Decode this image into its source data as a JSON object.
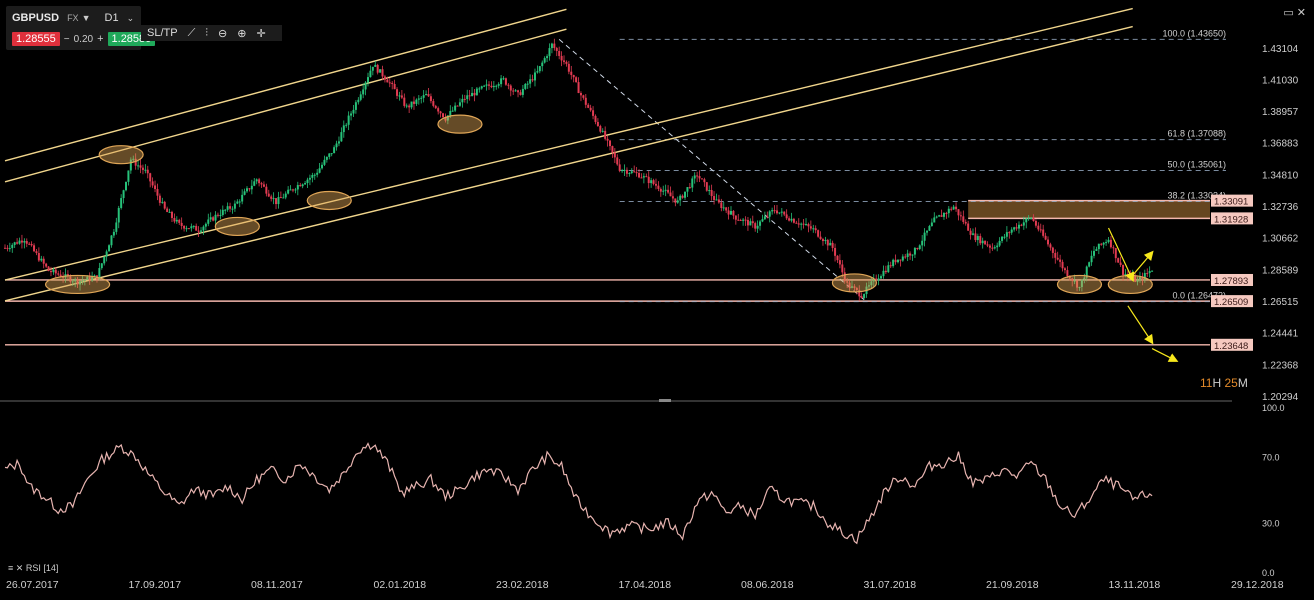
{
  "toolbar": {
    "symbol": "GBPUSD",
    "market": "FX",
    "timeframe": "D1",
    "bid": "1.28555",
    "change": "0.20",
    "ask": "1.28580",
    "sltp": "SL/TP"
  },
  "countdown": {
    "hours": "11",
    "h_unit": "H",
    "minutes": "25",
    "m_unit": "M"
  },
  "rsi_label": "RSI [14]",
  "colors": {
    "up": "#27c27a",
    "down": "#e23b52",
    "channel": "#f0d58c",
    "level": "#f4b7ad",
    "ellipse": "#e0a657",
    "zone": "#6b4a22",
    "arrow": "#f7e81c",
    "rsi": "#e7b4b0",
    "fib": "#9ab0c8"
  },
  "chart_data": [
    {
      "type": "candlestick",
      "symbol": "GBPUSD",
      "timeframe": "D1",
      "x_ticks": [
        "26.07.2017",
        "17.09.2017",
        "08.11.2017",
        "02.01.2018",
        "23.02.2018",
        "17.04.2018",
        "08.06.2018",
        "31.07.2018",
        "21.09.2018",
        "13.11.2018",
        "29.12.2018"
      ],
      "y_ticks": [
        "1.43104",
        "1.41030",
        "1.38957",
        "1.36883",
        "1.34810",
        "1.32736",
        "1.30662",
        "1.28589",
        "1.26515",
        "1.24441",
        "1.22368",
        "1.20294"
      ],
      "ylim": [
        1.20294,
        1.4466
      ],
      "close_path": [
        {
          "t": 0,
          "p": 1.3
        },
        {
          "t": 8,
          "p": 1.306
        },
        {
          "t": 18,
          "p": 1.285
        },
        {
          "t": 30,
          "p": 1.278
        },
        {
          "t": 38,
          "p": 1.281
        },
        {
          "t": 45,
          "p": 1.312
        },
        {
          "t": 52,
          "p": 1.358
        },
        {
          "t": 58,
          "p": 1.35
        },
        {
          "t": 66,
          "p": 1.325
        },
        {
          "t": 72,
          "p": 1.315
        },
        {
          "t": 80,
          "p": 1.312
        },
        {
          "t": 88,
          "p": 1.322
        },
        {
          "t": 95,
          "p": 1.328
        },
        {
          "t": 104,
          "p": 1.345
        },
        {
          "t": 112,
          "p": 1.33
        },
        {
          "t": 120,
          "p": 1.34
        },
        {
          "t": 128,
          "p": 1.348
        },
        {
          "t": 136,
          "p": 1.365
        },
        {
          "t": 145,
          "p": 1.395
        },
        {
          "t": 152,
          "p": 1.42
        },
        {
          "t": 158,
          "p": 1.41
        },
        {
          "t": 166,
          "p": 1.392
        },
        {
          "t": 174,
          "p": 1.4
        },
        {
          "t": 182,
          "p": 1.385
        },
        {
          "t": 190,
          "p": 1.398
        },
        {
          "t": 198,
          "p": 1.405
        },
        {
          "t": 206,
          "p": 1.41
        },
        {
          "t": 212,
          "p": 1.4
        },
        {
          "t": 220,
          "p": 1.415
        },
        {
          "t": 226,
          "p": 1.433
        },
        {
          "t": 232,
          "p": 1.42
        },
        {
          "t": 238,
          "p": 1.4
        },
        {
          "t": 246,
          "p": 1.378
        },
        {
          "t": 254,
          "p": 1.352
        },
        {
          "t": 262,
          "p": 1.348
        },
        {
          "t": 270,
          "p": 1.34
        },
        {
          "t": 278,
          "p": 1.33
        },
        {
          "t": 286,
          "p": 1.348
        },
        {
          "t": 294,
          "p": 1.33
        },
        {
          "t": 302,
          "p": 1.32
        },
        {
          "t": 310,
          "p": 1.314
        },
        {
          "t": 318,
          "p": 1.325
        },
        {
          "t": 326,
          "p": 1.318
        },
        {
          "t": 334,
          "p": 1.312
        },
        {
          "t": 342,
          "p": 1.3
        },
        {
          "t": 348,
          "p": 1.276
        },
        {
          "t": 354,
          "p": 1.269
        },
        {
          "t": 360,
          "p": 1.28
        },
        {
          "t": 368,
          "p": 1.292
        },
        {
          "t": 376,
          "p": 1.298
        },
        {
          "t": 384,
          "p": 1.318
        },
        {
          "t": 392,
          "p": 1.327
        },
        {
          "t": 400,
          "p": 1.308
        },
        {
          "t": 408,
          "p": 1.3
        },
        {
          "t": 416,
          "p": 1.312
        },
        {
          "t": 424,
          "p": 1.32
        },
        {
          "t": 432,
          "p": 1.3
        },
        {
          "t": 438,
          "p": 1.285
        },
        {
          "t": 444,
          "p": 1.274
        },
        {
          "t": 450,
          "p": 1.298
        },
        {
          "t": 456,
          "p": 1.306
        },
        {
          "t": 462,
          "p": 1.284
        },
        {
          "t": 468,
          "p": 1.278
        },
        {
          "t": 474,
          "p": 1.286
        }
      ],
      "fibonacci": [
        {
          "label": "100.0 (1.43650)",
          "value": 1.4365
        },
        {
          "label": "61.8 (1.37088)",
          "value": 1.37088
        },
        {
          "label": "50.0 (1.35061)",
          "value": 1.35061
        },
        {
          "label": "38.2 (1.33034)",
          "value": 1.33034
        },
        {
          "label": "0.0 (1.26472)",
          "value": 1.26472
        }
      ],
      "levels": [
        {
          "label": "1.33091",
          "value": 1.33091
        },
        {
          "label": "1.31928",
          "value": 1.31928
        },
        {
          "label": "1.27893",
          "value": 1.27893
        },
        {
          "label": "1.26509",
          "value": 1.26509
        },
        {
          "label": "1.23648",
          "value": 1.23648
        }
      ],
      "zone": {
        "from": 1.31928,
        "to": 1.33091
      },
      "channels": [
        {
          "from": {
            "t": 0,
            "p": 1.357
          },
          "to": {
            "t": 232,
            "p": 1.4562
          }
        },
        {
          "from": {
            "t": 0,
            "p": 1.3432
          },
          "to": {
            "t": 232,
            "p": 1.4432
          }
        },
        {
          "from": {
            "t": 0,
            "p": 1.2789
          },
          "to": {
            "t": 466,
            "p": 1.4567
          }
        },
        {
          "from": {
            "t": 0,
            "p": 1.2653
          },
          "to": {
            "t": 466,
            "p": 1.4449
          }
        }
      ],
      "ellipses": [
        {
          "t": 48,
          "p": 1.361
        },
        {
          "t": 30,
          "p": 1.276
        },
        {
          "t": 96,
          "p": 1.314
        },
        {
          "t": 134,
          "p": 1.331
        },
        {
          "t": 188,
          "p": 1.381
        },
        {
          "t": 351,
          "p": 1.277
        },
        {
          "t": 444,
          "p": 1.276
        },
        {
          "t": 465,
          "p": 1.276
        }
      ],
      "arrows": [
        {
          "from": {
            "t": 466,
            "p": 1.282
          },
          "to": {
            "t": 474,
            "p": 1.297
          }
        },
        {
          "from": {
            "t": 456,
            "p": 1.313
          },
          "to": {
            "t": 466,
            "p": 1.279
          }
        },
        {
          "from": {
            "t": 464,
            "p": 1.262
          },
          "to": {
            "t": 474,
            "p": 1.238
          }
        },
        {
          "from": {
            "t": 474,
            "p": 1.234
          },
          "to": {
            "t": 484,
            "p": 1.226
          }
        }
      ]
    },
    {
      "type": "line",
      "name": "RSI [14]",
      "y_ticks": [
        "100.0",
        "70.0",
        "30.0",
        "0.0"
      ],
      "ylim": [
        0,
        100
      ],
      "values_path": [
        {
          "t": 0,
          "v": 62
        },
        {
          "t": 6,
          "v": 66
        },
        {
          "t": 10,
          "v": 52
        },
        {
          "t": 16,
          "v": 46
        },
        {
          "t": 22,
          "v": 38
        },
        {
          "t": 28,
          "v": 40
        },
        {
          "t": 34,
          "v": 56
        },
        {
          "t": 40,
          "v": 68
        },
        {
          "t": 48,
          "v": 76
        },
        {
          "t": 54,
          "v": 70
        },
        {
          "t": 60,
          "v": 58
        },
        {
          "t": 66,
          "v": 48
        },
        {
          "t": 72,
          "v": 40
        },
        {
          "t": 78,
          "v": 50
        },
        {
          "t": 86,
          "v": 46
        },
        {
          "t": 92,
          "v": 52
        },
        {
          "t": 98,
          "v": 44
        },
        {
          "t": 104,
          "v": 56
        },
        {
          "t": 110,
          "v": 62
        },
        {
          "t": 116,
          "v": 56
        },
        {
          "t": 122,
          "v": 66
        },
        {
          "t": 128,
          "v": 58
        },
        {
          "t": 134,
          "v": 50
        },
        {
          "t": 140,
          "v": 60
        },
        {
          "t": 146,
          "v": 74
        },
        {
          "t": 152,
          "v": 78
        },
        {
          "t": 158,
          "v": 66
        },
        {
          "t": 164,
          "v": 48
        },
        {
          "t": 170,
          "v": 52
        },
        {
          "t": 176,
          "v": 56
        },
        {
          "t": 182,
          "v": 46
        },
        {
          "t": 188,
          "v": 50
        },
        {
          "t": 194,
          "v": 58
        },
        {
          "t": 200,
          "v": 62
        },
        {
          "t": 206,
          "v": 58
        },
        {
          "t": 212,
          "v": 50
        },
        {
          "t": 218,
          "v": 62
        },
        {
          "t": 224,
          "v": 70
        },
        {
          "t": 230,
          "v": 64
        },
        {
          "t": 236,
          "v": 44
        },
        {
          "t": 242,
          "v": 34
        },
        {
          "t": 250,
          "v": 24
        },
        {
          "t": 258,
          "v": 28
        },
        {
          "t": 266,
          "v": 26
        },
        {
          "t": 274,
          "v": 30
        },
        {
          "t": 280,
          "v": 22
        },
        {
          "t": 286,
          "v": 42
        },
        {
          "t": 292,
          "v": 48
        },
        {
          "t": 298,
          "v": 36
        },
        {
          "t": 304,
          "v": 40
        },
        {
          "t": 310,
          "v": 34
        },
        {
          "t": 316,
          "v": 50
        },
        {
          "t": 322,
          "v": 44
        },
        {
          "t": 328,
          "v": 42
        },
        {
          "t": 334,
          "v": 40
        },
        {
          "t": 340,
          "v": 30
        },
        {
          "t": 346,
          "v": 24
        },
        {
          "t": 352,
          "v": 20
        },
        {
          "t": 358,
          "v": 34
        },
        {
          "t": 364,
          "v": 50
        },
        {
          "t": 370,
          "v": 58
        },
        {
          "t": 376,
          "v": 52
        },
        {
          "t": 382,
          "v": 64
        },
        {
          "t": 388,
          "v": 66
        },
        {
          "t": 394,
          "v": 70
        },
        {
          "t": 400,
          "v": 54
        },
        {
          "t": 406,
          "v": 56
        },
        {
          "t": 412,
          "v": 62
        },
        {
          "t": 418,
          "v": 58
        },
        {
          "t": 424,
          "v": 66
        },
        {
          "t": 430,
          "v": 56
        },
        {
          "t": 436,
          "v": 40
        },
        {
          "t": 442,
          "v": 34
        },
        {
          "t": 448,
          "v": 44
        },
        {
          "t": 454,
          "v": 56
        },
        {
          "t": 460,
          "v": 52
        },
        {
          "t": 466,
          "v": 44
        },
        {
          "t": 474,
          "v": 48
        }
      ]
    }
  ]
}
